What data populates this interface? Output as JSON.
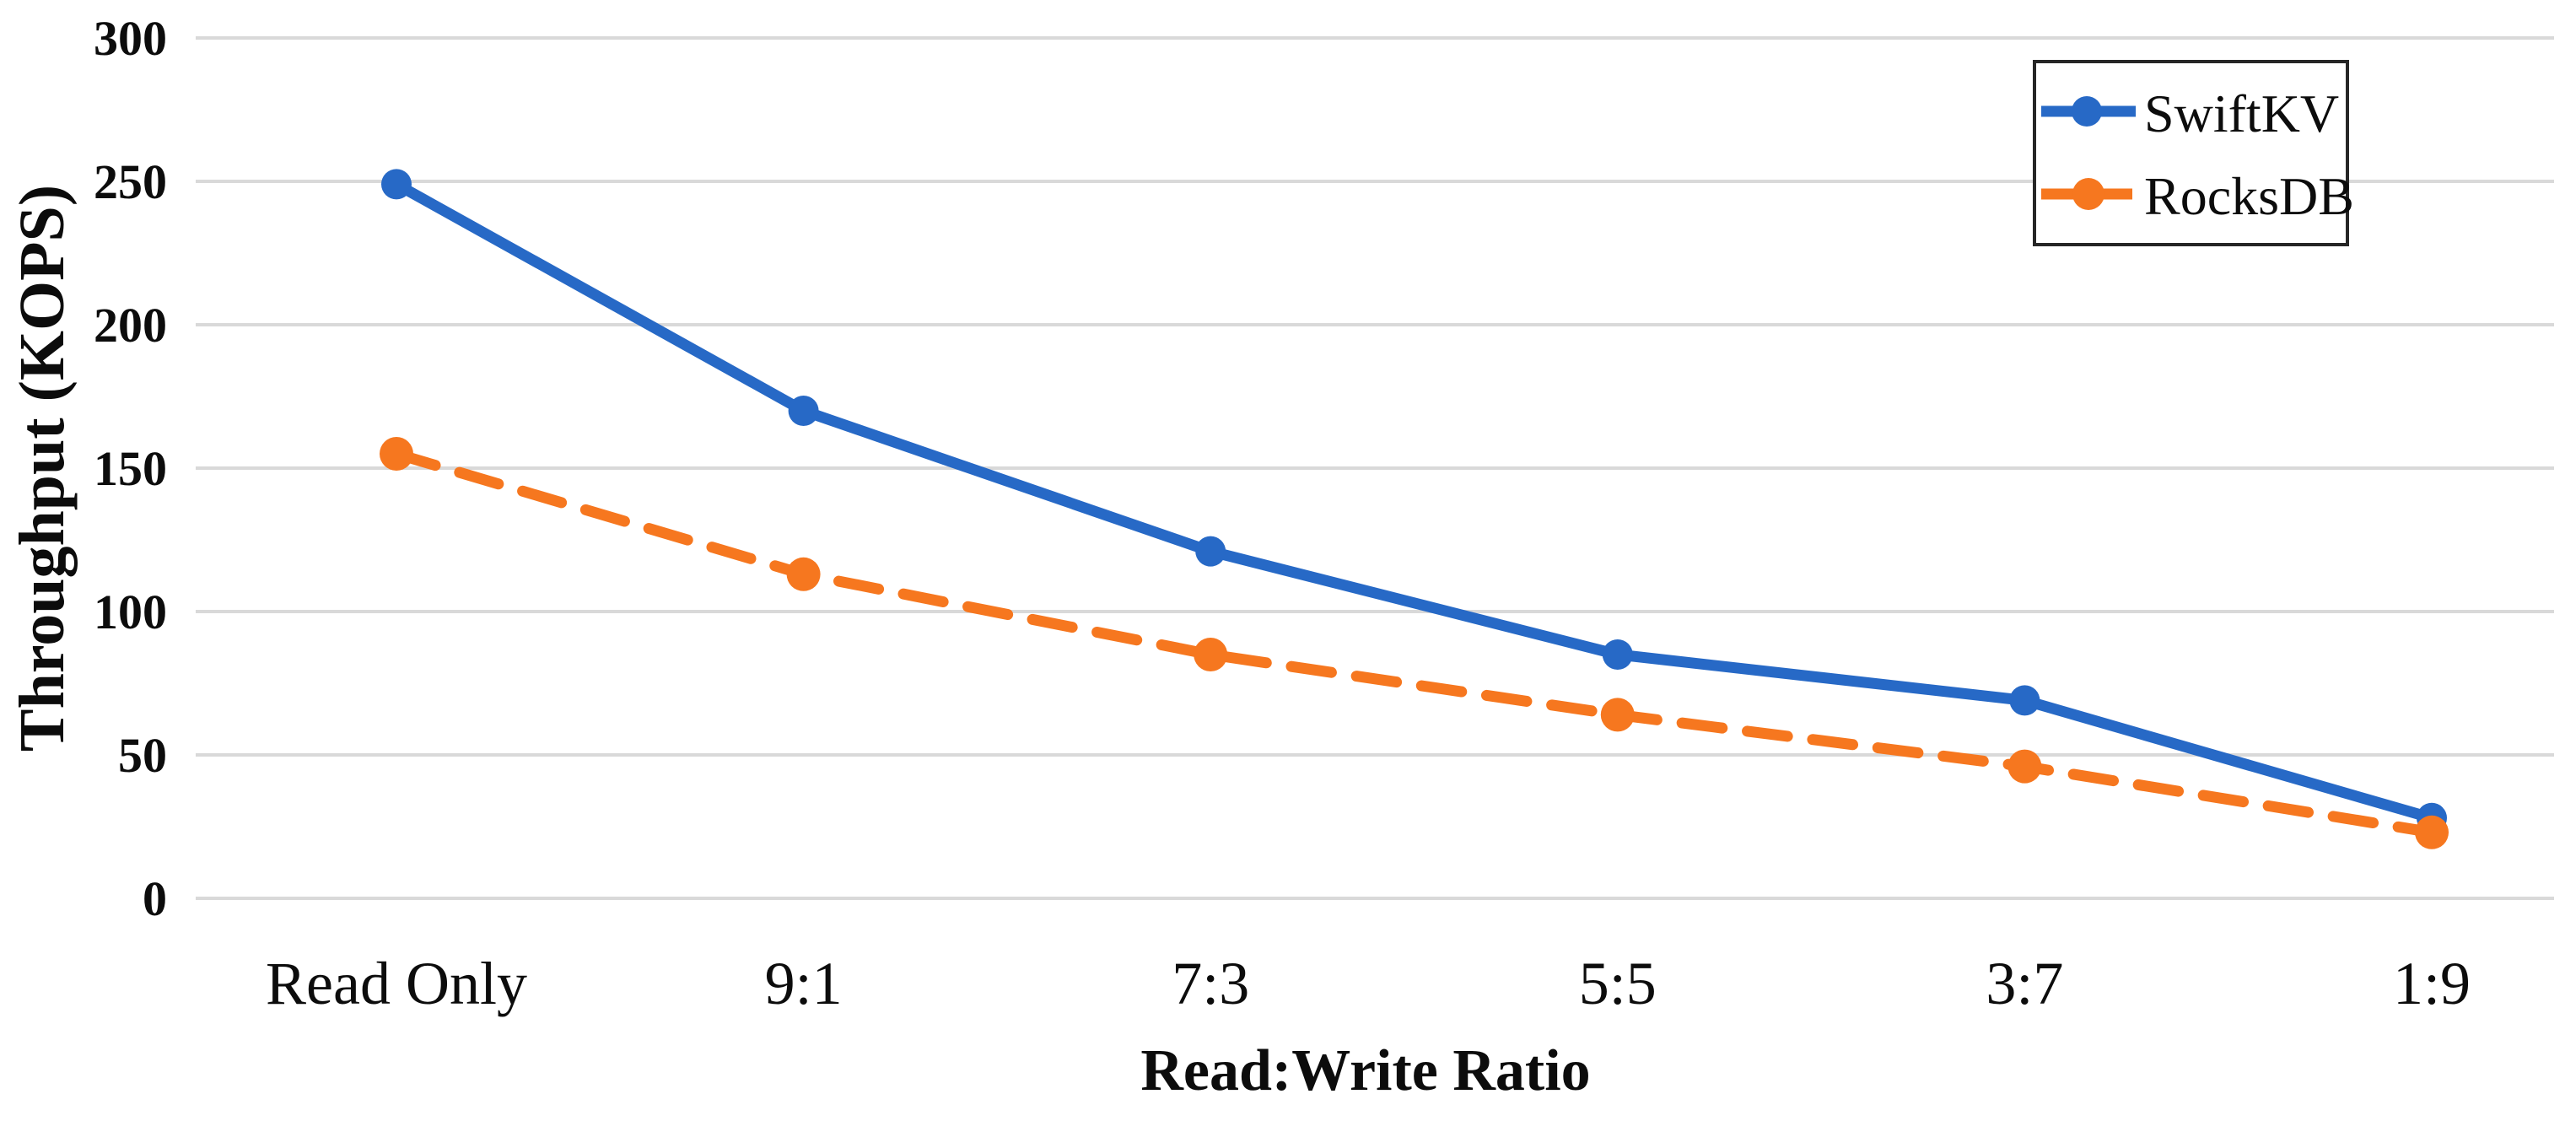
{
  "figure": {
    "background": "#ffffff",
    "text_color": "#0c0c0c"
  },
  "chart_data": {
    "type": "line",
    "title": "",
    "xlabel": "Read:Write Ratio",
    "ylabel": "Throughput (KOPS)",
    "categories": [
      "Read Only",
      "9:1",
      "7:3",
      "5:5",
      "3:7",
      "1:9"
    ],
    "series": [
      {
        "name": "SwiftKV",
        "color": "#2769C6",
        "line_style": "solid",
        "marker": "circle",
        "values": [
          249,
          170,
          121,
          85,
          69,
          28
        ]
      },
      {
        "name": "RocksDB",
        "color": "#F6771F",
        "line_style": "dashed",
        "marker": "circle",
        "values": [
          155,
          113,
          85,
          64,
          46,
          23
        ]
      }
    ],
    "ylim": [
      0,
      300
    ],
    "yticks": [
      0,
      50,
      100,
      150,
      200,
      250,
      300
    ],
    "grid": "horizontal",
    "gridline_color": "#D9D9D9",
    "legend": {
      "position": "top-right",
      "border_color": "#262626",
      "background": "#ffffff",
      "entries": [
        "SwiftKV",
        "RocksDB"
      ]
    }
  }
}
